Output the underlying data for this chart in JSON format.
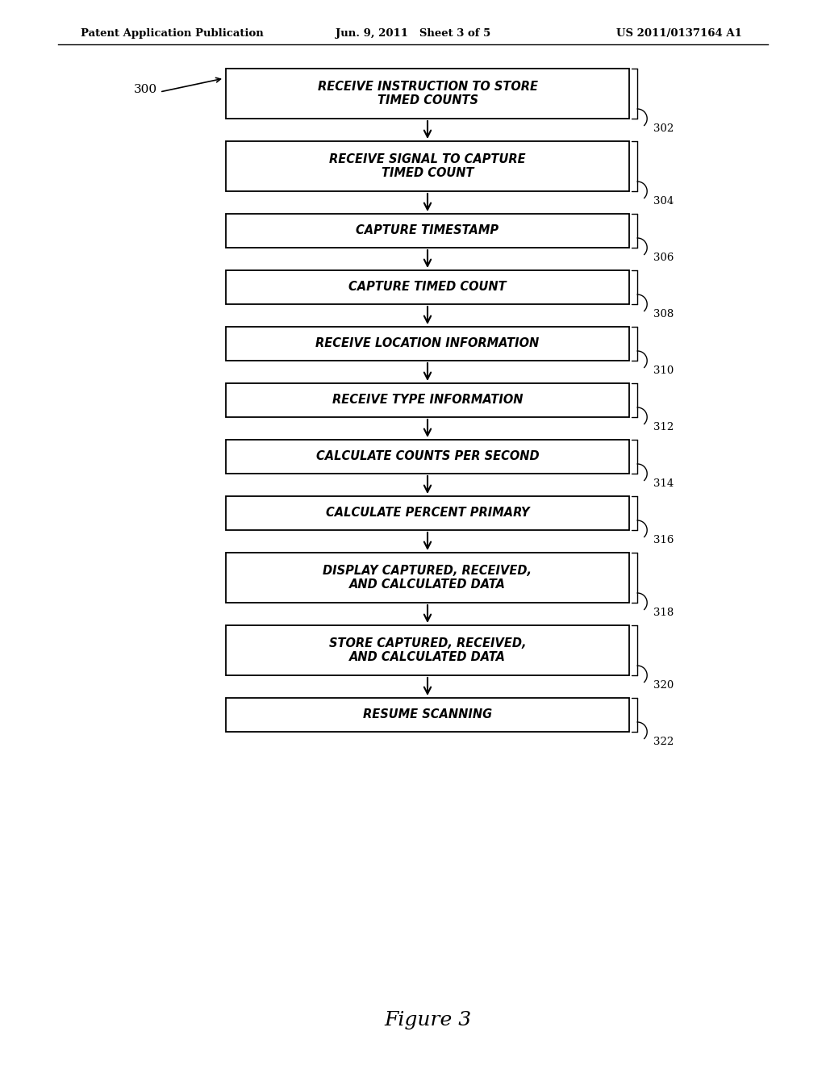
{
  "bg_color": "#ffffff",
  "header_left": "Patent Application Publication",
  "header_center": "Jun. 9, 2011   Sheet 3 of 5",
  "header_right": "US 2011/0137164 A1",
  "figure_label": "Figure 3",
  "diagram_label": "300",
  "boxes": [
    {
      "label": "RECEIVE INSTRUCTION TO STORE\nTIMED COUNTS",
      "ref": "302",
      "multiline": true
    },
    {
      "label": "RECEIVE SIGNAL TO CAPTURE\nTIMED COUNT",
      "ref": "304",
      "multiline": true
    },
    {
      "label": "CAPTURE TIMESTAMP",
      "ref": "306",
      "multiline": false
    },
    {
      "label": "CAPTURE TIMED COUNT",
      "ref": "308",
      "multiline": false
    },
    {
      "label": "RECEIVE LOCATION INFORMATION",
      "ref": "310",
      "multiline": false
    },
    {
      "label": "RECEIVE TYPE INFORMATION",
      "ref": "312",
      "multiline": false
    },
    {
      "label": "CALCULATE COUNTS PER SECOND",
      "ref": "314",
      "multiline": false
    },
    {
      "label": "CALCULATE PERCENT PRIMARY",
      "ref": "316",
      "multiline": false
    },
    {
      "label": "DISPLAY CAPTURED, RECEIVED,\nAND CALCULATED DATA",
      "ref": "318",
      "multiline": true
    },
    {
      "label": "STORE CAPTURED, RECEIVED,\nAND CALCULATED DATA",
      "ref": "320",
      "multiline": true
    },
    {
      "label": "RESUME SCANNING",
      "ref": "322",
      "multiline": false
    }
  ]
}
